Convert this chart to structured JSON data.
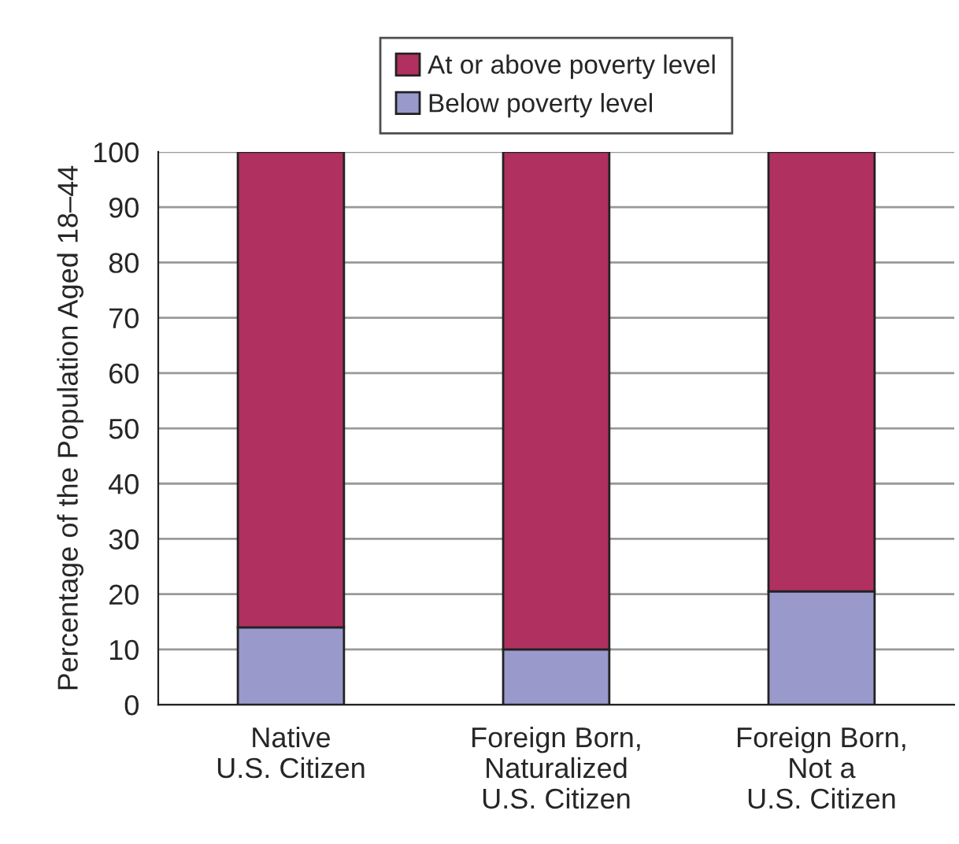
{
  "chart_data": {
    "type": "bar",
    "stacked": true,
    "ylabel": "Percentage of the Population Aged 18–44",
    "categories": [
      "Native\nU.S. Citizen",
      "Foreign Born,\nNaturalized\nU.S. Citizen",
      "Foreign Born,\nNot a\nU.S. Citizen"
    ],
    "series": [
      {
        "name": "Below poverty level",
        "color": "#9999cc",
        "values": [
          14,
          10,
          20.5
        ]
      },
      {
        "name": "At or above poverty level",
        "color": "#b03060",
        "values": [
          86,
          90,
          79.5
        ]
      }
    ],
    "ylim": [
      0,
      100
    ],
    "yticks": [
      0,
      10,
      20,
      30,
      40,
      50,
      60,
      70,
      80,
      90,
      100
    ],
    "grid": "y",
    "legend": "top"
  }
}
